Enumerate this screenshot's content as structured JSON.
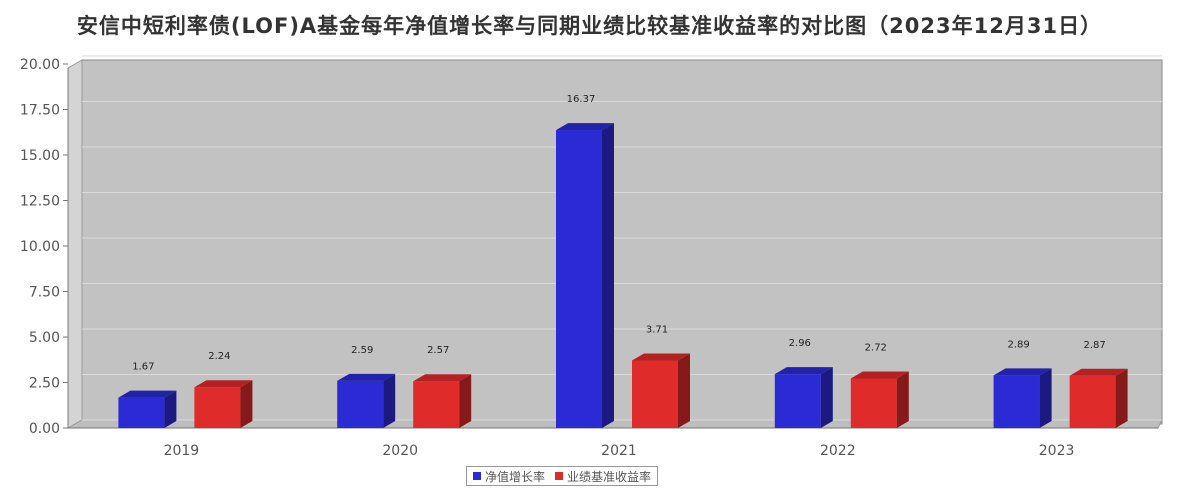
{
  "chart_data": {
    "type": "bar",
    "title": "安信中短利率债(LOF)A基金每年净值增长率与同期业绩比较基准收益率的对比图（2023年12月31日）",
    "categories": [
      "2019",
      "2020",
      "2021",
      "2022",
      "2023"
    ],
    "series": [
      {
        "name": "净值增长率",
        "color": "#2b2bd6",
        "values": [
          1.67,
          2.59,
          16.37,
          2.96,
          2.89
        ]
      },
      {
        "name": "业绩基准收益率",
        "color": "#e02b2b",
        "values": [
          2.24,
          2.57,
          3.71,
          2.72,
          2.87
        ]
      }
    ],
    "y_ticks": [
      "0.00",
      "2.50",
      "5.00",
      "7.50",
      "10.00",
      "12.50",
      "15.00",
      "17.50",
      "20.00"
    ],
    "ylim": [
      0,
      20
    ],
    "grid": true,
    "legend_position": "bottom-center",
    "style": "3d-bar"
  }
}
